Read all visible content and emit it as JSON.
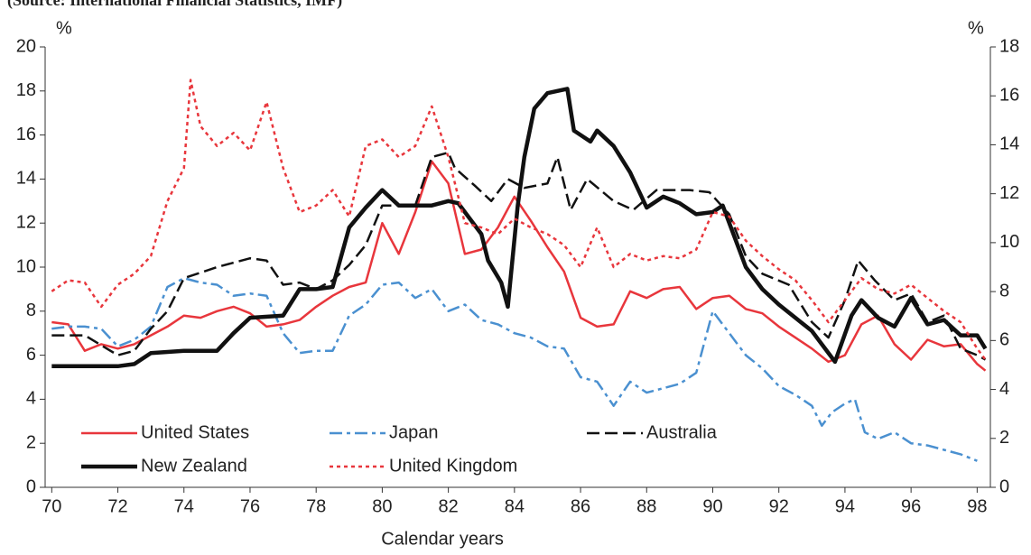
{
  "chart_data": {
    "type": "line",
    "title": "(Source: International Financial Statistics, IMF)",
    "xlabel": "Calendar years",
    "ylabel": "%",
    "y2label": "%",
    "xlim": [
      69.8,
      98.4
    ],
    "xticks": [
      70,
      72,
      74,
      76,
      78,
      80,
      82,
      84,
      86,
      88,
      90,
      92,
      94,
      96,
      98
    ],
    "ylim": [
      0,
      20
    ],
    "yticks": [
      0,
      2,
      4,
      6,
      8,
      10,
      12,
      14,
      16,
      18,
      20
    ],
    "y2lim": [
      0,
      18
    ],
    "y2ticks": [
      0,
      2,
      4,
      6,
      8,
      10,
      12,
      14,
      16,
      18
    ],
    "legend": "lower left",
    "series": [
      {
        "name": "United States",
        "color": "#e8363c",
        "style": "solid",
        "x": [
          70,
          70.5,
          71,
          71.5,
          72,
          72.5,
          73,
          73.5,
          74,
          74.5,
          75,
          75.5,
          76,
          76.5,
          77,
          77.5,
          78,
          78.5,
          79,
          79.5,
          80,
          80.5,
          81,
          81.5,
          82,
          82.5,
          83,
          83.5,
          84,
          84.5,
          85,
          85.5,
          86,
          86.5,
          87,
          87.5,
          88,
          88.5,
          89,
          89.5,
          90,
          90.5,
          91,
          91.5,
          92,
          92.5,
          93,
          93.5,
          94,
          94.5,
          95,
          95.5,
          96,
          96.5,
          97,
          97.5,
          98,
          98.25
        ],
        "values": [
          7.5,
          7.4,
          6.2,
          6.5,
          6.3,
          6.5,
          6.9,
          7.3,
          7.8,
          7.7,
          8.0,
          8.2,
          7.9,
          7.3,
          7.4,
          7.6,
          8.2,
          8.7,
          9.1,
          9.3,
          12.0,
          10.6,
          12.5,
          14.8,
          13.8,
          10.6,
          10.8,
          11.8,
          13.2,
          12.1,
          10.9,
          9.8,
          7.7,
          7.3,
          7.4,
          8.9,
          8.6,
          9.0,
          9.1,
          8.1,
          8.6,
          8.7,
          8.1,
          7.9,
          7.3,
          6.8,
          6.3,
          5.7,
          6.0,
          7.4,
          7.8,
          6.5,
          5.8,
          6.7,
          6.4,
          6.5,
          5.6,
          5.3
        ]
      },
      {
        "name": "Japan",
        "color": "#4a90d0",
        "style": "dash-dot",
        "x": [
          70,
          70.5,
          71,
          71.5,
          72,
          72.5,
          73,
          73.5,
          74,
          74.5,
          75,
          75.5,
          76,
          76.5,
          77,
          77.5,
          78,
          78.5,
          79,
          79.5,
          80,
          80.5,
          81,
          81.5,
          82,
          82.5,
          83,
          83.5,
          84,
          84.5,
          85,
          85.5,
          86,
          86.5,
          87,
          87.5,
          88,
          88.5,
          89,
          89.5,
          90,
          90.5,
          91,
          91.5,
          92,
          92.5,
          93,
          93.3,
          93.6,
          94,
          94.3,
          94.6,
          95,
          95.5,
          96,
          96.5,
          97,
          97.5,
          98
        ],
        "values": [
          7.2,
          7.3,
          7.3,
          7.2,
          6.4,
          6.7,
          7.3,
          9.1,
          9.5,
          9.3,
          9.2,
          8.7,
          8.8,
          8.7,
          7.0,
          6.1,
          6.2,
          6.2,
          7.8,
          8.3,
          9.2,
          9.3,
          8.6,
          9.0,
          8.0,
          8.3,
          7.6,
          7.4,
          7.0,
          6.8,
          6.4,
          6.3,
          5.0,
          4.8,
          3.7,
          4.8,
          4.3,
          4.5,
          4.7,
          5.2,
          8.0,
          7.0,
          6.0,
          5.4,
          4.6,
          4.2,
          3.7,
          2.8,
          3.4,
          3.8,
          4.0,
          2.5,
          2.2,
          2.5,
          2.0,
          1.9,
          1.7,
          1.5,
          1.2
        ]
      },
      {
        "name": "Australia",
        "color": "#111111",
        "style": "dashed",
        "x": [
          70,
          71,
          72,
          72.5,
          73,
          73.5,
          74,
          75,
          76,
          76.5,
          77,
          77.5,
          78,
          78.5,
          79,
          79.5,
          80,
          81,
          81.5,
          82,
          82.2,
          82.8,
          83.3,
          83.8,
          84.3,
          85,
          85.3,
          85.7,
          86.2,
          87,
          87.6,
          88.3,
          89.3,
          89.9,
          90.5,
          91,
          91.5,
          92.3,
          93,
          93.5,
          94,
          94.4,
          94.9,
          95.5,
          96,
          96.5,
          97,
          97.5,
          98,
          98.25
        ],
        "values": [
          6.9,
          6.9,
          6.0,
          6.2,
          7.2,
          8.0,
          9.5,
          10.0,
          10.4,
          10.3,
          9.2,
          9.3,
          9.0,
          9.4,
          10.1,
          11.0,
          12.8,
          12.8,
          15.0,
          15.2,
          14.5,
          13.7,
          13.0,
          14.0,
          13.6,
          13.8,
          15.0,
          12.6,
          14.0,
          13.0,
          12.6,
          13.5,
          13.5,
          13.4,
          12.4,
          10.5,
          9.7,
          9.2,
          7.5,
          6.8,
          8.5,
          10.3,
          9.4,
          8.5,
          8.8,
          7.5,
          7.8,
          6.3,
          6.0,
          5.8
        ]
      },
      {
        "name": "New Zealand",
        "color": "#111111",
        "style": "thick",
        "x": [
          70,
          71,
          72,
          72.5,
          73,
          74,
          75,
          75.5,
          76,
          77,
          77.5,
          78,
          78.5,
          79,
          79.5,
          80,
          80.5,
          81,
          81.5,
          82,
          82.3,
          83,
          83.2,
          83.6,
          83.8,
          84.1,
          84.3,
          84.6,
          85,
          85.6,
          85.8,
          86.3,
          86.5,
          87,
          87.5,
          88,
          88.5,
          89,
          89.5,
          90,
          90.3,
          91,
          91.5,
          92,
          92.5,
          93,
          93.7,
          94.2,
          94.5,
          95,
          95.5,
          96,
          96.5,
          97,
          97.5,
          98,
          98.25
        ],
        "values": [
          5.5,
          5.5,
          5.5,
          5.6,
          6.1,
          6.2,
          6.2,
          7.0,
          7.7,
          7.8,
          9.0,
          9.0,
          9.1,
          11.8,
          12.7,
          13.5,
          12.8,
          12.8,
          12.8,
          13.0,
          12.9,
          11.5,
          10.3,
          9.3,
          8.2,
          12.8,
          15.0,
          17.2,
          17.9,
          18.1,
          16.2,
          15.7,
          16.2,
          15.5,
          14.3,
          12.7,
          13.2,
          12.9,
          12.4,
          12.5,
          12.8,
          10.0,
          9.0,
          8.3,
          7.7,
          7.1,
          5.7,
          7.8,
          8.5,
          7.7,
          7.3,
          8.6,
          7.4,
          7.6,
          6.9,
          6.9,
          6.3
        ]
      },
      {
        "name": "United Kingdom",
        "color": "#e8363c",
        "style": "dotted",
        "x": [
          70,
          70.5,
          71,
          71.5,
          72,
          72.5,
          73,
          73.5,
          74,
          74.2,
          74.5,
          75,
          75.5,
          76,
          76.5,
          77,
          77.5,
          78,
          78.5,
          79,
          79.5,
          80,
          80.5,
          81,
          81.5,
          82,
          82.5,
          83,
          83.5,
          84,
          84.5,
          85,
          85.5,
          86,
          86.5,
          87,
          87.5,
          88,
          88.5,
          89,
          89.5,
          90,
          90.5,
          91,
          91.5,
          92,
          92.5,
          93,
          93.5,
          94,
          94.5,
          95,
          95.5,
          96,
          96.5,
          97,
          97.5,
          98,
          98.25
        ],
        "values": [
          8.9,
          9.4,
          9.3,
          8.2,
          9.2,
          9.7,
          10.5,
          13.0,
          14.5,
          18.5,
          16.4,
          15.5,
          16.1,
          15.3,
          17.5,
          14.5,
          12.5,
          12.8,
          13.5,
          12.3,
          15.5,
          15.8,
          15.0,
          15.5,
          17.3,
          15.0,
          12.0,
          11.8,
          11.5,
          12.2,
          11.8,
          11.5,
          11.0,
          10.0,
          11.8,
          10.0,
          10.6,
          10.3,
          10.5,
          10.4,
          10.8,
          12.5,
          12.3,
          11.2,
          10.5,
          9.9,
          9.4,
          8.5,
          7.5,
          8.5,
          9.5,
          9.0,
          8.8,
          9.2,
          8.6,
          8.0,
          7.5,
          6.3,
          5.8
        ]
      }
    ]
  }
}
